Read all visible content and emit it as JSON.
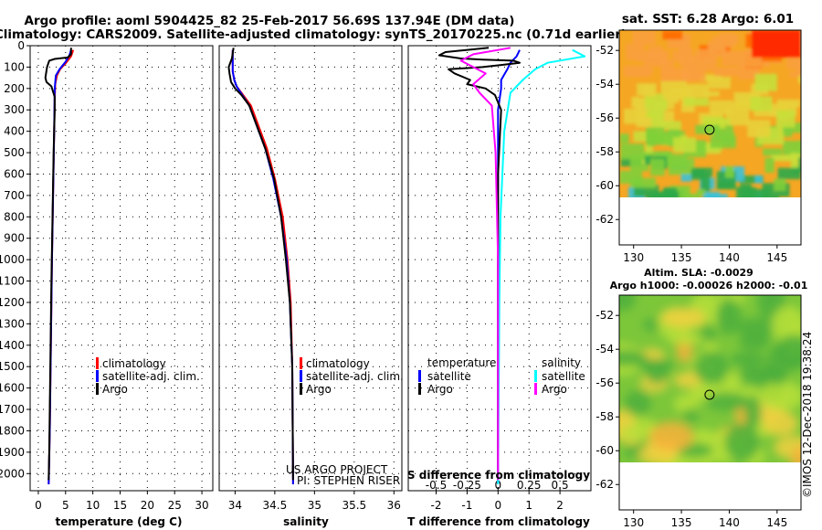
{
  "header": {
    "title_line1": "Argo profile: aoml 5904425_82 25-Feb-2017 56.69S 137.94E (DM data)",
    "title_line2": "Climatology: CARS2009. Satellite-adjusted climatology: synTS_20170225.nc (0.71d earlier)"
  },
  "right": {
    "sst_title": "sat. SST: 6.28 Argo: 6.01",
    "sla_title": "Altim. SLA: -0.0029",
    "h_title": "Argo h1000: -0.00026 h2000: -0.01",
    "credit": "©IMOS 12-Dec-2018 19:38:24"
  },
  "project": {
    "line1": "US ARGO PROJECT",
    "line2": "PI: STEPHEN RISER"
  },
  "colors": {
    "clim": "#ff0000",
    "sat": "#0000ff",
    "argo": "#000000",
    "sal_sat": "#00ffff",
    "sal_argo": "#ff00ff"
  },
  "chart_data": [
    {
      "type": "line",
      "name": "temperature",
      "xlabel": "temperature (deg C)",
      "xlim": [
        -1.5,
        32
      ],
      "xticks": [
        0,
        5,
        10,
        15,
        20,
        25,
        30
      ],
      "ylim": [
        0,
        2080
      ],
      "yticks": [
        0,
        100,
        200,
        300,
        400,
        500,
        600,
        700,
        800,
        900,
        1000,
        1100,
        1200,
        1300,
        1400,
        1500,
        1600,
        1700,
        1800,
        1900,
        2000
      ],
      "legend": [
        "climatology",
        "satellite-adj. clim.",
        "Argo"
      ],
      "series": [
        {
          "name": "climatology",
          "points": [
            [
              6.4,
              20
            ],
            [
              6.0,
              50
            ],
            [
              5.1,
              80
            ],
            [
              4.0,
              110
            ],
            [
              3.4,
              140
            ],
            [
              3.1,
              180
            ],
            [
              3.0,
              250
            ],
            [
              2.9,
              400
            ],
            [
              2.7,
              700
            ],
            [
              2.5,
              1000
            ],
            [
              2.3,
              1400
            ],
            [
              2.1,
              1800
            ],
            [
              1.9,
              2050
            ]
          ]
        },
        {
          "name": "satellite-adj. clim.",
          "points": [
            [
              6.0,
              20
            ],
            [
              5.7,
              45
            ],
            [
              5.0,
              75
            ],
            [
              3.9,
              110
            ],
            [
              3.2,
              140
            ],
            [
              3.0,
              200
            ],
            [
              2.9,
              400
            ],
            [
              2.7,
              700
            ],
            [
              2.5,
              1000
            ],
            [
              2.3,
              1400
            ],
            [
              2.1,
              1800
            ],
            [
              1.9,
              2050
            ]
          ]
        },
        {
          "name": "Argo",
          "points": [
            [
              6.0,
              10
            ],
            [
              6.0,
              40
            ],
            [
              5.4,
              55
            ],
            [
              3.0,
              62
            ],
            [
              2.0,
              70
            ],
            [
              1.6,
              100
            ],
            [
              1.3,
              150
            ],
            [
              1.5,
              170
            ],
            [
              2.4,
              190
            ],
            [
              3.0,
              240
            ],
            [
              3.0,
              300
            ],
            [
              2.8,
              500
            ],
            [
              2.6,
              800
            ],
            [
              2.4,
              1100
            ],
            [
              2.2,
              1500
            ],
            [
              2.0,
              1900
            ],
            [
              1.9,
              2030
            ]
          ]
        }
      ]
    },
    {
      "type": "line",
      "name": "salinity",
      "xlabel": "salinity",
      "xlim": [
        33.8,
        36.1
      ],
      "xticks": [
        34,
        34.5,
        35,
        35.5,
        36
      ],
      "xtick_labels": [
        "34",
        "34.5",
        "35",
        "35.5",
        "36"
      ],
      "ylim": [
        0,
        2080
      ],
      "legend": [
        "climatology",
        "satellite-adj. clim.",
        "Argo"
      ],
      "series": [
        {
          "name": "climatology",
          "points": [
            [
              33.97,
              20
            ],
            [
              33.97,
              80
            ],
            [
              33.97,
              120
            ],
            [
              33.99,
              160
            ],
            [
              34.02,
              190
            ],
            [
              34.1,
              230
            ],
            [
              34.2,
              280
            ],
            [
              34.3,
              380
            ],
            [
              34.4,
              480
            ],
            [
              34.5,
              620
            ],
            [
              34.6,
              800
            ],
            [
              34.66,
              1000
            ],
            [
              34.7,
              1200
            ],
            [
              34.72,
              1500
            ],
            [
              34.73,
              2050
            ]
          ]
        },
        {
          "name": "satellite-adj. clim.",
          "points": [
            [
              33.97,
              20
            ],
            [
              33.97,
              120
            ],
            [
              33.99,
              160
            ],
            [
              34.02,
              190
            ],
            [
              34.09,
              230
            ],
            [
              34.18,
              280
            ],
            [
              34.28,
              380
            ],
            [
              34.38,
              480
            ],
            [
              34.48,
              620
            ],
            [
              34.58,
              800
            ],
            [
              34.65,
              1000
            ],
            [
              34.69,
              1200
            ],
            [
              34.72,
              1500
            ],
            [
              34.73,
              2050
            ]
          ]
        },
        {
          "name": "Argo",
          "points": [
            [
              33.98,
              10
            ],
            [
              33.96,
              60
            ],
            [
              33.92,
              100
            ],
            [
              33.93,
              130
            ],
            [
              33.95,
              170
            ],
            [
              34.0,
              200
            ],
            [
              34.08,
              230
            ],
            [
              34.18,
              280
            ],
            [
              34.28,
              380
            ],
            [
              34.38,
              480
            ],
            [
              34.49,
              620
            ],
            [
              34.58,
              800
            ],
            [
              34.64,
              1000
            ],
            [
              34.69,
              1200
            ],
            [
              34.72,
              1500
            ],
            [
              34.73,
              2030
            ]
          ]
        }
      ]
    },
    {
      "type": "line",
      "name": "difference",
      "xlabel": "T difference from climatology",
      "xlabel_top": "S difference from climatology",
      "xlim": [
        -2.9,
        3.0
      ],
      "xticks": [
        -2,
        -1,
        0,
        1,
        2
      ],
      "xtick_labels": [
        "-2",
        "-1",
        "0",
        "1",
        "2"
      ],
      "top_ticks": [
        -0.5,
        -0.25,
        0,
        0.25,
        0.5
      ],
      "top_tick_labels": [
        "-0.5",
        "-0.25",
        "0",
        "0.25",
        "0.5"
      ],
      "ylim": [
        0,
        2080
      ],
      "legend_left_title": "temperature",
      "legend_right_title": "salinity",
      "legend_left": [
        "satellite",
        "Argo"
      ],
      "legend_right": [
        "satellite",
        "Argo"
      ],
      "series": [
        {
          "name": "T satellite",
          "points": [
            [
              0.7,
              20
            ],
            [
              0.6,
              50
            ],
            [
              0.4,
              80
            ],
            [
              0.3,
              110
            ],
            [
              0.1,
              160
            ],
            [
              0.1,
              200
            ],
            [
              0,
              300
            ],
            [
              0,
              700
            ],
            [
              0,
              1100
            ],
            [
              0,
              1500
            ],
            [
              0,
              2050
            ]
          ]
        },
        {
          "name": "T Argo",
          "points": [
            [
              -0.3,
              10
            ],
            [
              -1.7,
              30
            ],
            [
              -1.9,
              45
            ],
            [
              -1.2,
              60
            ],
            [
              -0.5,
              65
            ],
            [
              0.5,
              70
            ],
            [
              0.7,
              80
            ],
            [
              0.1,
              90
            ],
            [
              -0.5,
              100
            ],
            [
              -1.6,
              110
            ],
            [
              -1.4,
              130
            ],
            [
              -0.9,
              160
            ],
            [
              -1.0,
              180
            ],
            [
              -0.4,
              200
            ],
            [
              -0.1,
              230
            ],
            [
              0.1,
              300
            ],
            [
              0,
              600
            ],
            [
              0,
              1500
            ],
            [
              0,
              2030
            ]
          ]
        },
        {
          "name": "S satellite",
          "points": [
            [
              0.6,
              20
            ],
            [
              0.7,
              50
            ],
            [
              0.4,
              80
            ],
            [
              0.3,
              110
            ],
            [
              0.2,
              160
            ],
            [
              0.1,
              220
            ],
            [
              0.05,
              400
            ],
            [
              0.02,
              800
            ],
            [
              0.01,
              1200
            ],
            [
              0,
              2050
            ]
          ]
        },
        {
          "name": "S Argo",
          "points": [
            [
              0.1,
              10
            ],
            [
              -0.2,
              40
            ],
            [
              -0.3,
              70
            ],
            [
              -0.2,
              100
            ],
            [
              -0.1,
              130
            ],
            [
              -0.2,
              180
            ],
            [
              -0.15,
              220
            ],
            [
              -0.05,
              280
            ],
            [
              -0.02,
              500
            ],
            [
              0,
              1000
            ],
            [
              0,
              2030
            ]
          ]
        }
      ]
    },
    {
      "type": "heatmap",
      "name": "sst map",
      "xlim": [
        128.5,
        147.5
      ],
      "ylim": [
        -63.5,
        -50.8
      ],
      "xticks": [
        130,
        135,
        140,
        145
      ],
      "yticks": [
        -52,
        -54,
        -56,
        -58,
        -60,
        -62
      ],
      "marker": [
        137.94,
        -56.69
      ]
    },
    {
      "type": "heatmap",
      "name": "sla map",
      "xlim": [
        128.5,
        147.5
      ],
      "ylim": [
        -63.5,
        -50.8
      ],
      "xticks": [
        130,
        135,
        140,
        145
      ],
      "yticks": [
        -52,
        -54,
        -56,
        -58,
        -60,
        -62
      ],
      "marker": [
        137.94,
        -56.69
      ]
    }
  ]
}
